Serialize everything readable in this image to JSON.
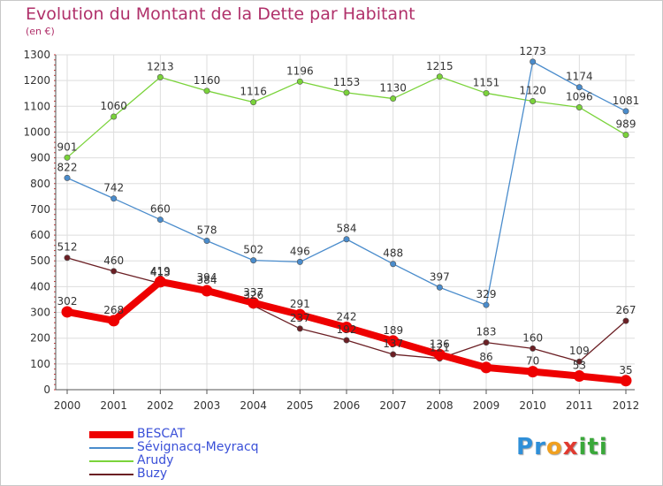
{
  "chart_data": {
    "type": "line",
    "title": "Evolution du Montant de la Dette par Habitant",
    "ylabel": "(en €)",
    "x": [
      "2000",
      "2001",
      "2002",
      "2003",
      "2004",
      "2005",
      "2006",
      "2007",
      "2008",
      "2009",
      "2010",
      "2011",
      "2012"
    ],
    "ylim": [
      0,
      1300
    ],
    "yticks": [
      0,
      100,
      200,
      300,
      400,
      500,
      600,
      700,
      800,
      900,
      1000,
      1100,
      1200,
      1300
    ],
    "grid": true,
    "legend_placement": "bottom-left",
    "series": [
      {
        "name": "Buzy",
        "color": "#6b1f24",
        "values": [
          512,
          460,
          413,
          394,
          326,
          237,
          192,
          137,
          121,
          183,
          160,
          109,
          267
        ],
        "labels": [
          "512",
          "460",
          "413",
          "394",
          "326",
          "237",
          "192",
          "137",
          "121",
          "183",
          "160",
          "109",
          "267"
        ]
      },
      {
        "name": "Arudy",
        "color": "#7ad33a",
        "values": [
          901,
          1060,
          1213,
          1160,
          1116,
          1196,
          1153,
          1130,
          1215,
          1151,
          1120,
          1096,
          989
        ],
        "labels": [
          "901",
          "1060",
          "1213",
          "1160",
          "1116",
          "1196",
          "1153",
          "1130",
          "1215",
          "1151",
          "1120",
          "1096",
          "989"
        ]
      },
      {
        "name": "Sévignacq-Meyracq",
        "color": "#4a8ccc",
        "values": [
          822,
          742,
          660,
          578,
          502,
          496,
          584,
          488,
          397,
          329,
          1273,
          1174,
          1081
        ],
        "labels": [
          "822",
          "742",
          "660",
          "578",
          "502",
          "496",
          "584",
          "488",
          "397",
          "329",
          "1273",
          "1174",
          "1081"
        ]
      },
      {
        "name": "BESCAT",
        "color": "#ee0000",
        "values": [
          302,
          268,
          419,
          384,
          337,
          291,
          242,
          189,
          136,
          86,
          70,
          53,
          35
        ],
        "labels": [
          "302",
          "268",
          "419",
          "384",
          "337",
          "291",
          "242",
          "189",
          "136",
          "86",
          "70",
          "53",
          "35"
        ]
      }
    ],
    "legend_order": [
      "BESCAT",
      "Sévignacq-Meyracq",
      "Arudy",
      "Buzy"
    ]
  },
  "logo": {
    "letters": [
      "P",
      "r",
      "o",
      "x",
      "i",
      "t",
      "i"
    ],
    "colors": [
      "#2f8fd8",
      "#2f8fd8",
      "#f0a020",
      "#e03a30",
      "#3aa83a",
      "#3aa83a",
      "#3aa83a"
    ]
  }
}
